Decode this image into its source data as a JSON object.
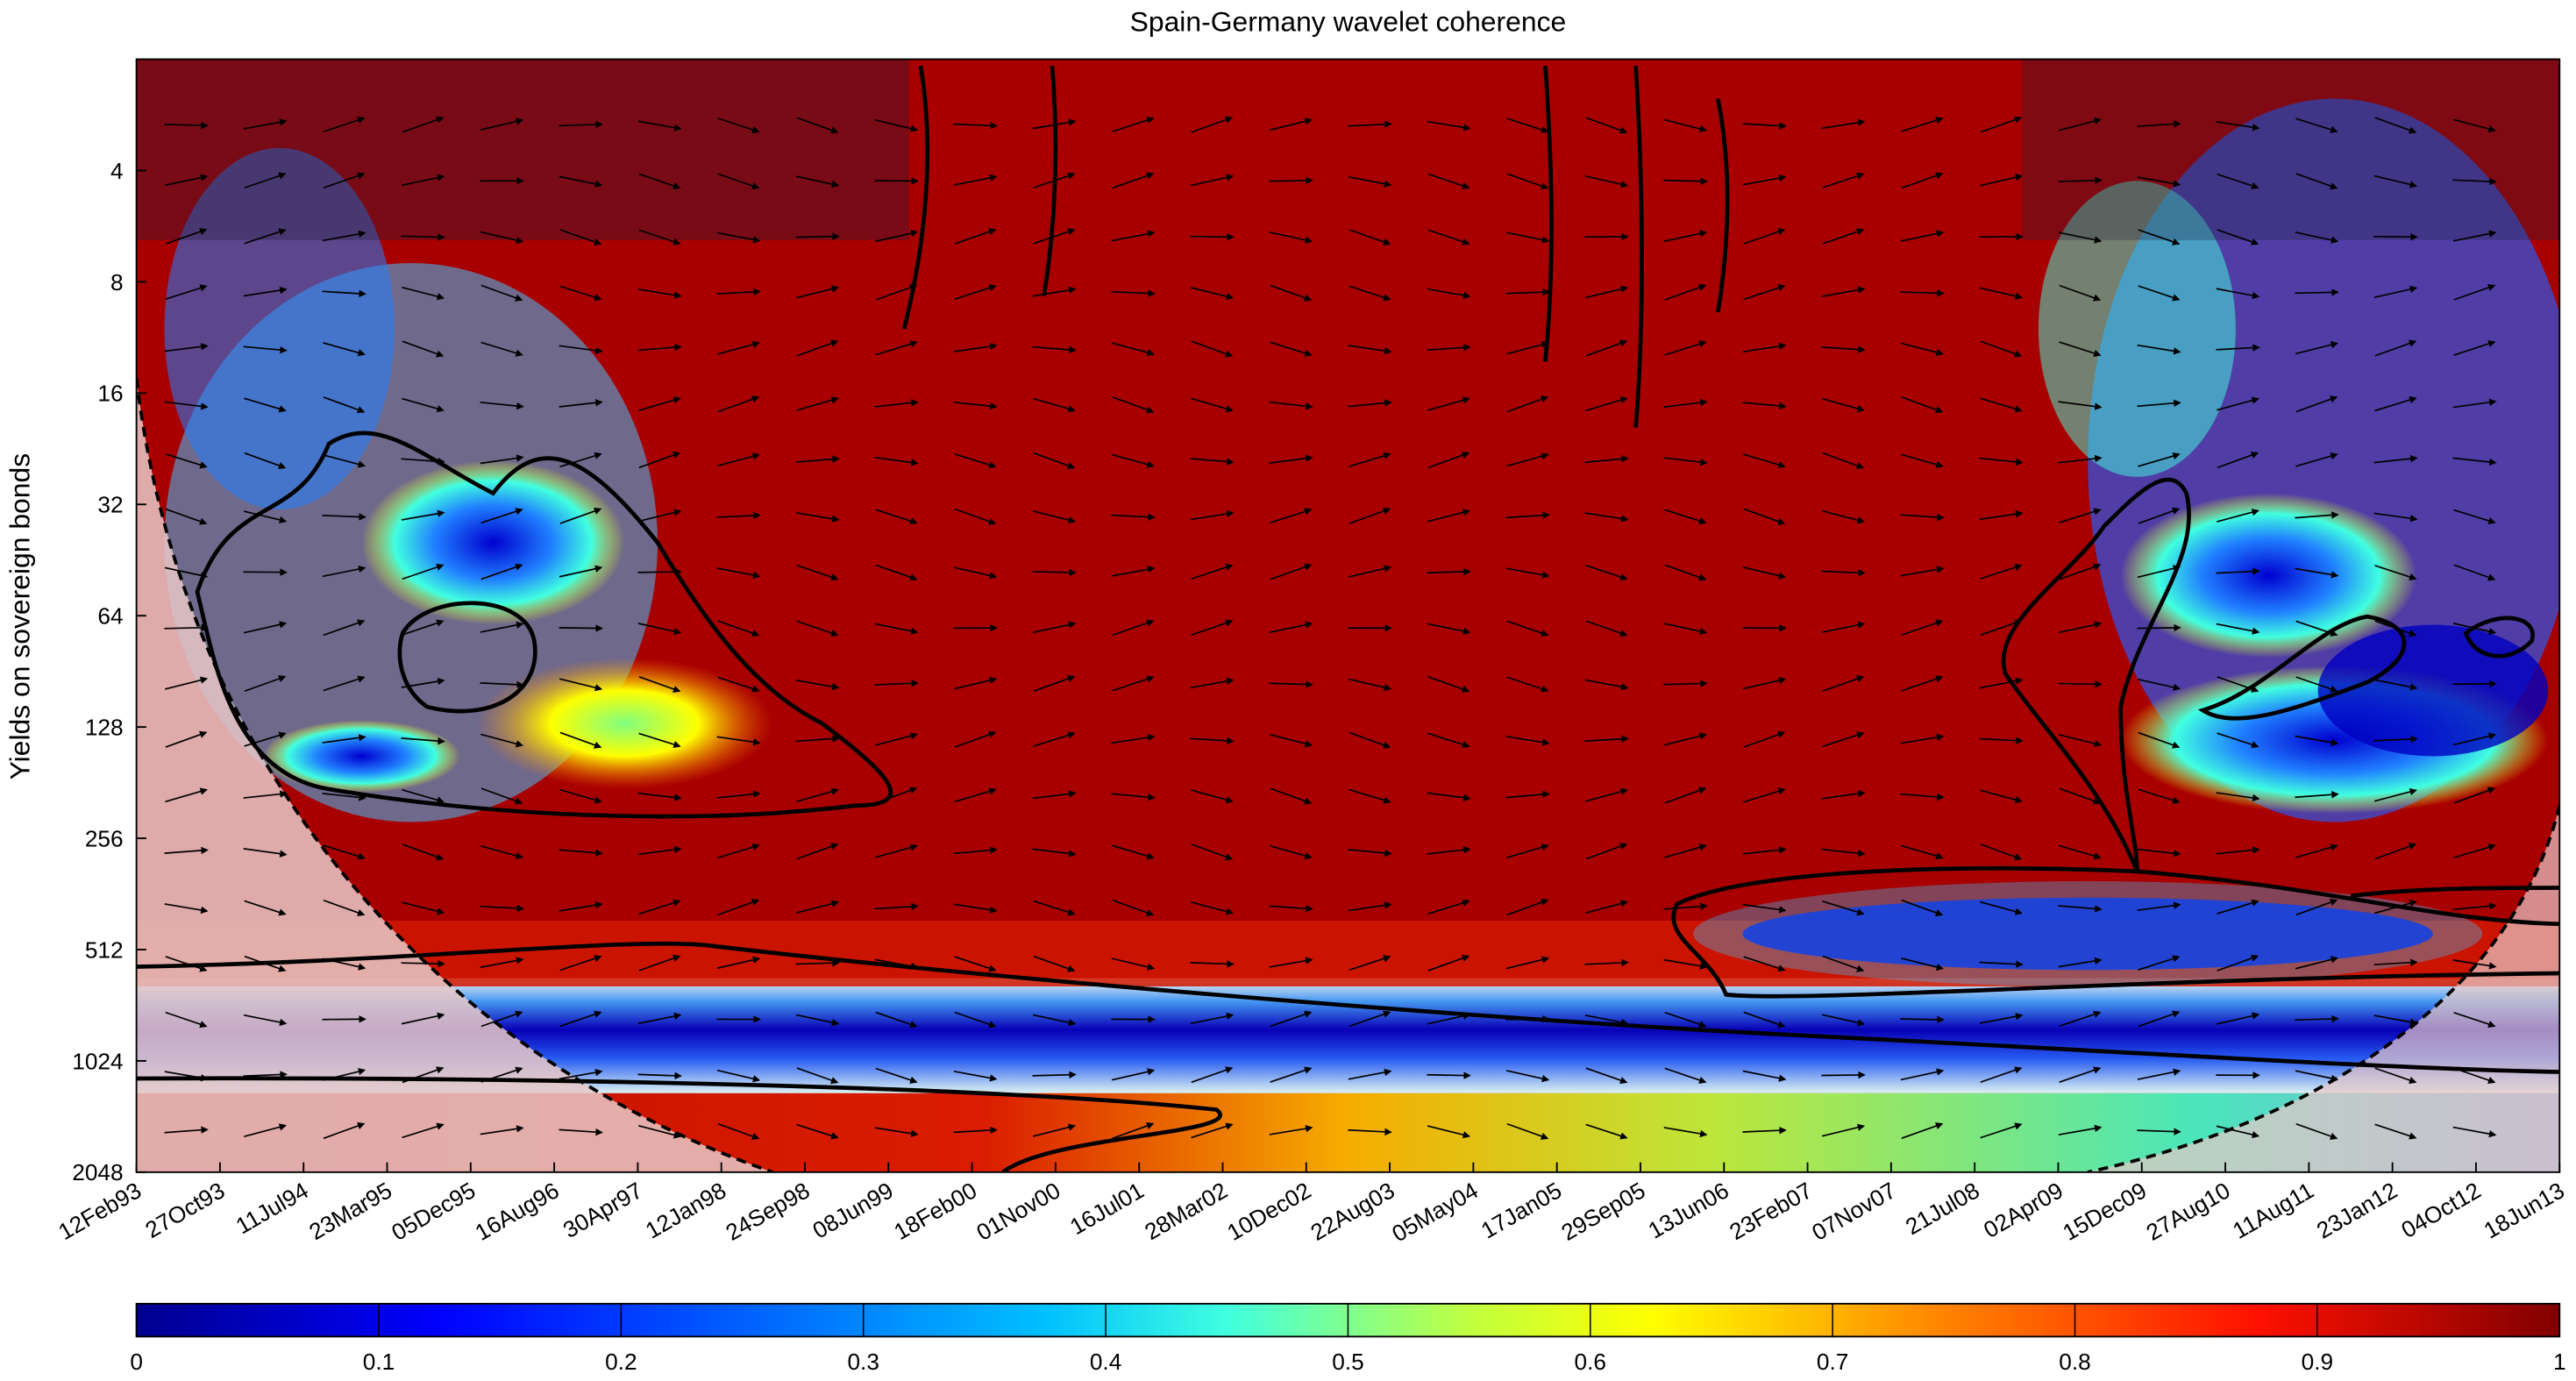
{
  "chart_data": {
    "type": "heatmap",
    "title": "Spain-Germany wavelet coherence",
    "xlabel": "",
    "ylabel": "Yields on sovereign bonds",
    "x_tick_labels": [
      "12Feb93",
      "27Oct93",
      "11Jul94",
      "23Mar95",
      "05Dec95",
      "16Aug96",
      "30Apr97",
      "12Jan98",
      "24Sep98",
      "08Jun99",
      "18Feb00",
      "01Nov00",
      "16Jul01",
      "28Mar02",
      "10Dec02",
      "22Aug03",
      "05May04",
      "17Jan05",
      "29Sep05",
      "13Jun06",
      "23Feb07",
      "07Nov07",
      "21Jul08",
      "02Apr09",
      "15Dec09",
      "27Aug10",
      "11Aug11",
      "23Jan12",
      "04Oct12",
      "18Jun13"
    ],
    "y_scale": "log2",
    "y_tick_values": [
      4,
      8,
      16,
      32,
      64,
      128,
      256,
      512,
      1024,
      2048
    ],
    "y_tick_labels": [
      "4",
      "8",
      "16",
      "32",
      "64",
      "128",
      "256",
      "512",
      "1024",
      "2048"
    ],
    "y_range": [
      2,
      2048
    ],
    "y_inverted": true,
    "colorbar": {
      "range": [
        0,
        1
      ],
      "tick_values": [
        0,
        0.1,
        0.2,
        0.3,
        0.4,
        0.5,
        0.6,
        0.7,
        0.8,
        0.9,
        1
      ],
      "tick_labels": [
        "0",
        "0.1",
        "0.2",
        "0.3",
        "0.4",
        "0.5",
        "0.6",
        "0.7",
        "0.8",
        "0.9",
        "1"
      ],
      "colormap": "jet",
      "colors": [
        "#00008f",
        "#0000ff",
        "#0080ff",
        "#00ffff",
        "#80ff80",
        "#ffff00",
        "#ff8000",
        "#ff0000",
        "#800000"
      ]
    },
    "cone_of_influence": true,
    "phase_arrows": true,
    "significance_contours": true
  }
}
